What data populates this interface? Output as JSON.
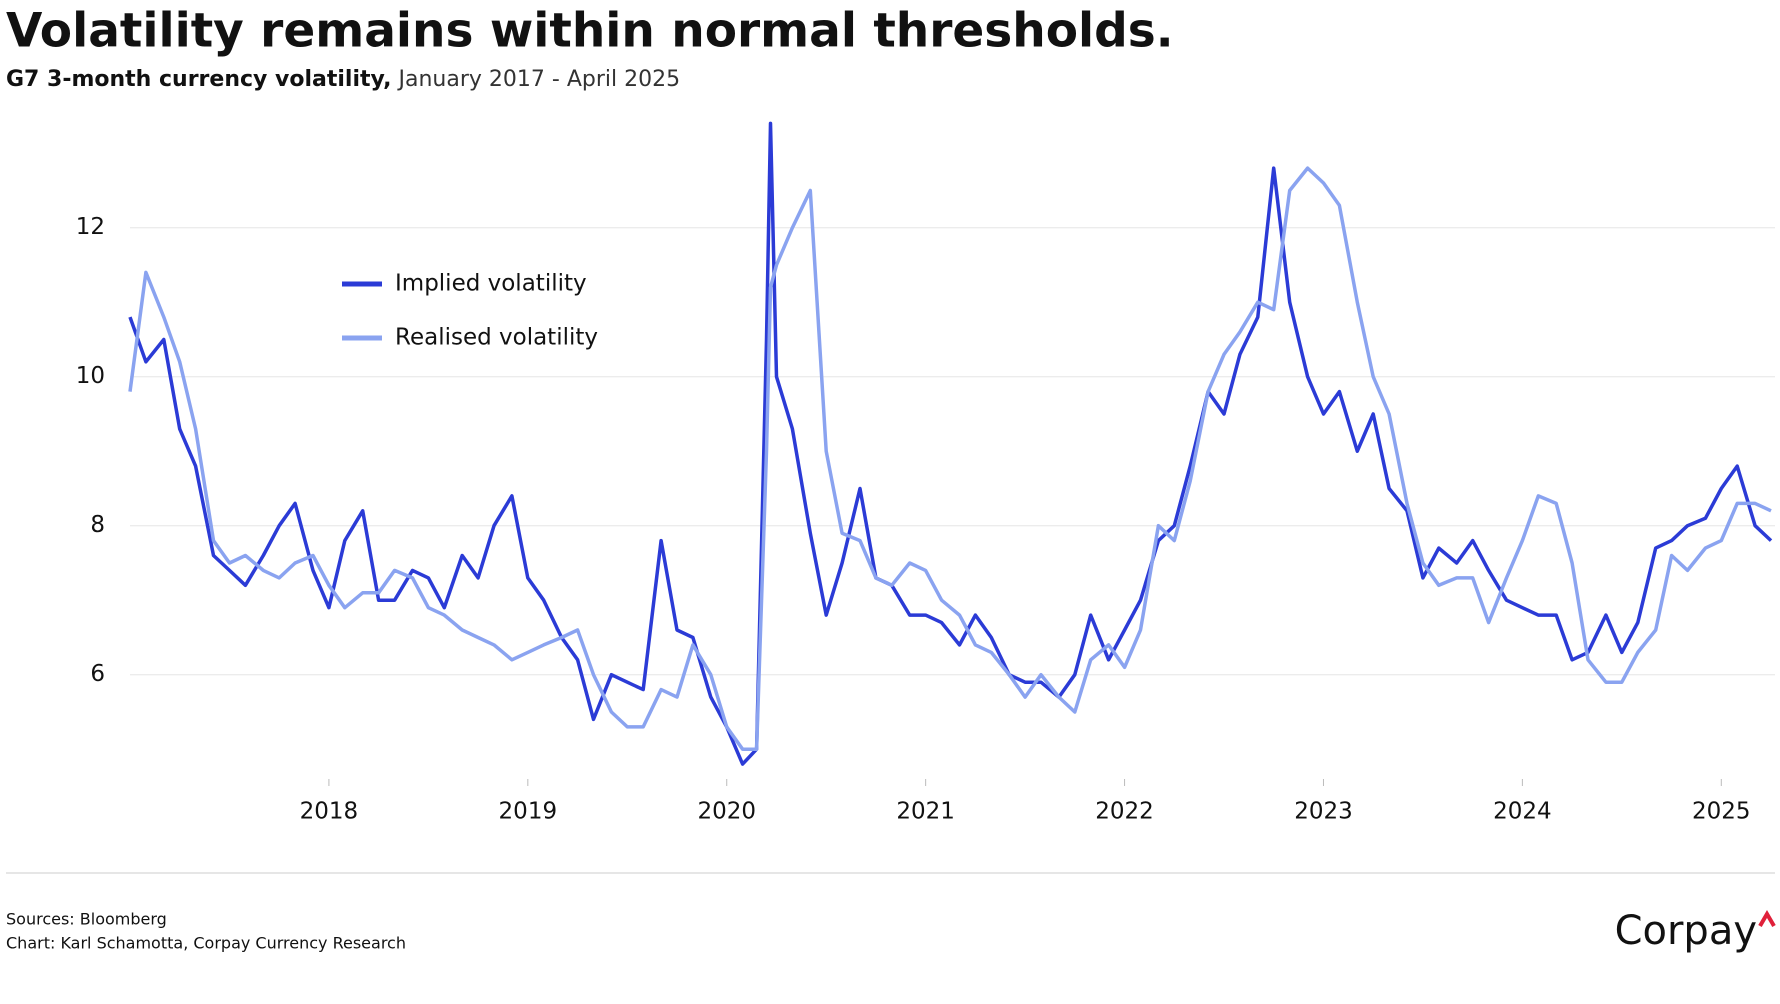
{
  "chart_data": {
    "type": "line",
    "title": "Volatility remains within normal thresholds.",
    "subtitle": [
      "G7 3-month currency volatility,",
      "January 2017 - April 2025"
    ],
    "sources": [
      "Sources: Bloomberg",
      "Chart: Karl Schamotta, Corpay Currency Research"
    ],
    "logo": "Corpay",
    "x": [
      2017.0,
      2017.08,
      2017.17,
      2017.25,
      2017.33,
      2017.42,
      2017.5,
      2017.58,
      2017.67,
      2017.75,
      2017.83,
      2017.92,
      2018.0,
      2018.08,
      2018.17,
      2018.25,
      2018.33,
      2018.42,
      2018.5,
      2018.58,
      2018.67,
      2018.75,
      2018.83,
      2018.92,
      2019.0,
      2019.08,
      2019.17,
      2019.25,
      2019.33,
      2019.42,
      2019.5,
      2019.58,
      2019.67,
      2019.75,
      2019.83,
      2019.92,
      2020.0,
      2020.08,
      2020.15,
      2020.2,
      2020.22,
      2020.25,
      2020.33,
      2020.42,
      2020.5,
      2020.58,
      2020.67,
      2020.75,
      2020.83,
      2020.92,
      2021.0,
      2021.08,
      2021.17,
      2021.25,
      2021.33,
      2021.42,
      2021.5,
      2021.58,
      2021.67,
      2021.75,
      2021.83,
      2021.92,
      2022.0,
      2022.08,
      2022.17,
      2022.25,
      2022.33,
      2022.42,
      2022.5,
      2022.58,
      2022.67,
      2022.75,
      2022.83,
      2022.92,
      2023.0,
      2023.08,
      2023.17,
      2023.25,
      2023.33,
      2023.42,
      2023.5,
      2023.58,
      2023.67,
      2023.75,
      2023.83,
      2023.92,
      2024.0,
      2024.08,
      2024.17,
      2024.25,
      2024.33,
      2024.42,
      2024.5,
      2024.58,
      2024.67,
      2024.75,
      2024.83,
      2024.92,
      2025.0,
      2025.08,
      2025.17,
      2025.25
    ],
    "series": [
      {
        "name": "Implied volatility",
        "color": "#2b3bd6",
        "values": [
          10.8,
          10.2,
          10.5,
          9.3,
          8.8,
          7.6,
          7.4,
          7.2,
          7.6,
          8.0,
          8.3,
          7.4,
          6.9,
          7.8,
          8.2,
          7.0,
          7.0,
          7.4,
          7.3,
          6.9,
          7.6,
          7.3,
          8.0,
          8.4,
          7.3,
          7.0,
          6.5,
          6.2,
          5.4,
          6.0,
          5.9,
          5.8,
          7.8,
          6.6,
          6.5,
          5.7,
          5.3,
          4.8,
          5.0,
          10.5,
          13.4,
          10.0,
          9.3,
          7.9,
          6.8,
          7.5,
          8.5,
          7.3,
          7.2,
          6.8,
          6.8,
          6.7,
          6.4,
          6.8,
          6.5,
          6.0,
          5.9,
          5.9,
          5.7,
          6.0,
          6.8,
          6.2,
          6.6,
          7.0,
          7.8,
          8.0,
          8.8,
          9.8,
          9.5,
          10.3,
          10.8,
          12.8,
          11.0,
          10.0,
          9.5,
          9.8,
          9.0,
          9.5,
          8.5,
          8.2,
          7.3,
          7.7,
          7.5,
          7.8,
          7.4,
          7.0,
          6.9,
          6.8,
          6.8,
          6.2,
          6.3,
          6.8,
          6.3,
          6.7,
          7.7,
          7.8,
          8.0,
          8.1,
          8.5,
          8.8,
          8.0,
          7.8
        ]
      },
      {
        "name": "Realised volatility",
        "color": "#8aa3f0",
        "values": [
          9.8,
          11.4,
          10.8,
          10.2,
          9.3,
          7.8,
          7.5,
          7.6,
          7.4,
          7.3,
          7.5,
          7.6,
          7.2,
          6.9,
          7.1,
          7.1,
          7.4,
          7.3,
          6.9,
          6.8,
          6.6,
          6.5,
          6.4,
          6.2,
          6.3,
          6.4,
          6.5,
          6.6,
          6.0,
          5.5,
          5.3,
          5.3,
          5.8,
          5.7,
          6.4,
          6.0,
          5.3,
          5.0,
          5.0,
          9.0,
          11.2,
          11.5,
          12.0,
          12.5,
          9.0,
          7.9,
          7.8,
          7.3,
          7.2,
          7.5,
          7.4,
          7.0,
          6.8,
          6.4,
          6.3,
          6.0,
          5.7,
          6.0,
          5.7,
          5.5,
          6.2,
          6.4,
          6.1,
          6.6,
          8.0,
          7.8,
          8.6,
          9.8,
          10.3,
          10.6,
          11.0,
          10.9,
          12.5,
          12.8,
          12.6,
          12.3,
          11.0,
          10.0,
          9.5,
          8.3,
          7.5,
          7.2,
          7.3,
          7.3,
          6.7,
          7.3,
          7.8,
          8.4,
          8.3,
          7.5,
          6.2,
          5.9,
          5.9,
          6.3,
          6.6,
          7.6,
          7.4,
          7.7,
          7.8,
          8.3,
          8.3,
          8.2
        ]
      }
    ],
    "xlim": [
      2017.0,
      2025.27
    ],
    "xticks": [
      2018,
      2019,
      2020,
      2021,
      2022,
      2023,
      2024,
      2025
    ],
    "ylim": [
      4.6,
      13.5
    ],
    "yticks": [
      6,
      8,
      10,
      12
    ],
    "grid": true
  }
}
